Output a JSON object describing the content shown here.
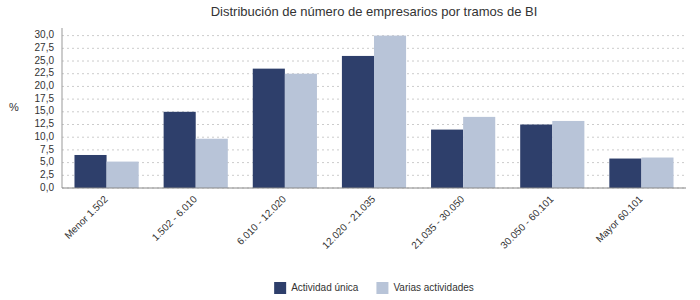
{
  "chart_data": {
    "type": "bar",
    "title": "Distribución de número de empresarios por tramos de BI",
    "ylabel": "%",
    "categories": [
      "Menor 1.502",
      "1.502 - 6.010",
      "6.010 - 12.020",
      "12.020 - 21.035",
      "21.035 - 30.050",
      "30.050 - 60.101",
      "Mayor 60.101"
    ],
    "series": [
      {
        "name": "Actividad única",
        "color": "#2E3F6B",
        "values": [
          6.5,
          15.0,
          23.5,
          26.0,
          11.5,
          12.5,
          5.8
        ]
      },
      {
        "name": "Varias actividades",
        "color": "#B8C4D8",
        "values": [
          5.2,
          9.7,
          22.5,
          30.0,
          14.0,
          13.2,
          6.0
        ]
      }
    ],
    "ylim": [
      0,
      31.5
    ],
    "yticks": [
      {
        "value": 0.0,
        "label": "0,0"
      },
      {
        "value": 2.5,
        "label": "2,5"
      },
      {
        "value": 5.0,
        "label": "5,0"
      },
      {
        "value": 7.5,
        "label": "7,5"
      },
      {
        "value": 10.0,
        "label": "10,0"
      },
      {
        "value": 12.5,
        "label": "12,5"
      },
      {
        "value": 15.0,
        "label": "15,0"
      },
      {
        "value": 17.5,
        "label": "17,5"
      },
      {
        "value": 20.0,
        "label": "20,0"
      },
      {
        "value": 22.5,
        "label": "22,5"
      },
      {
        "value": 25.0,
        "label": "25,0"
      },
      {
        "value": 27.5,
        "label": "27,5"
      },
      {
        "value": 30.0,
        "label": "30,0"
      }
    ],
    "grid": true,
    "legend": "bottom"
  }
}
